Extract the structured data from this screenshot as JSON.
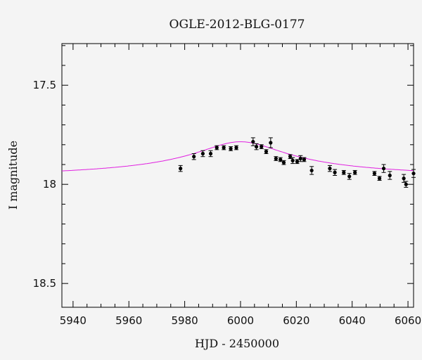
{
  "chart_data": {
    "type": "scatter",
    "title": "OGLE-2012-BLG-0177",
    "xlabel": "HJD - 2450000",
    "ylabel": "I magnitude",
    "xlim": [
      5936,
      6062
    ],
    "ylim": [
      18.62,
      17.29
    ],
    "y_inverted": true,
    "x_ticks": [
      5940,
      5960,
      5980,
      6000,
      6020,
      6040,
      6060
    ],
    "y_ticks": [
      17.5,
      18,
      18.5
    ],
    "y_tick_labels": [
      "17.5",
      "18",
      "18.5"
    ],
    "colors": {
      "points": "#000000",
      "model": "#e020e0",
      "frame": "#000000"
    },
    "series": [
      {
        "values": [
          {
            "x": 5978.5,
            "y": 17.92,
            "err": 0.015
          },
          {
            "x": 5983.3,
            "y": 17.86,
            "err": 0.015
          },
          {
            "x": 5986.5,
            "y": 17.845,
            "err": 0.015
          },
          {
            "x": 5989.3,
            "y": 17.845,
            "err": 0.015
          },
          {
            "x": 5991.5,
            "y": 17.815,
            "err": 0.01
          },
          {
            "x": 5994.0,
            "y": 17.815,
            "err": 0.01
          },
          {
            "x": 5996.5,
            "y": 17.82,
            "err": 0.01
          },
          {
            "x": 5998.5,
            "y": 17.815,
            "err": 0.01
          },
          {
            "x": 6004.5,
            "y": 17.785,
            "err": 0.02
          },
          {
            "x": 6005.7,
            "y": 17.81,
            "err": 0.015
          },
          {
            "x": 6007.5,
            "y": 17.81,
            "err": 0.01
          },
          {
            "x": 6009.2,
            "y": 17.835,
            "err": 0.01
          },
          {
            "x": 6010.8,
            "y": 17.79,
            "err": 0.025
          },
          {
            "x": 6012.7,
            "y": 17.87,
            "err": 0.01
          },
          {
            "x": 6014.3,
            "y": 17.875,
            "err": 0.01
          },
          {
            "x": 6015.5,
            "y": 17.89,
            "err": 0.01
          },
          {
            "x": 6017.8,
            "y": 17.86,
            "err": 0.01
          },
          {
            "x": 6018.7,
            "y": 17.88,
            "err": 0.015
          },
          {
            "x": 6020.3,
            "y": 17.885,
            "err": 0.01
          },
          {
            "x": 6021.5,
            "y": 17.87,
            "err": 0.015
          },
          {
            "x": 6022.8,
            "y": 17.875,
            "err": 0.01
          },
          {
            "x": 6025.5,
            "y": 17.93,
            "err": 0.02
          },
          {
            "x": 6032.0,
            "y": 17.92,
            "err": 0.015
          },
          {
            "x": 6033.8,
            "y": 17.94,
            "err": 0.015
          },
          {
            "x": 6037.0,
            "y": 17.94,
            "err": 0.01
          },
          {
            "x": 6039.0,
            "y": 17.96,
            "err": 0.015
          },
          {
            "x": 6041.0,
            "y": 17.94,
            "err": 0.01
          },
          {
            "x": 6048.0,
            "y": 17.945,
            "err": 0.01
          },
          {
            "x": 6049.8,
            "y": 17.97,
            "err": 0.01
          },
          {
            "x": 6051.3,
            "y": 17.92,
            "err": 0.02
          },
          {
            "x": 6053.5,
            "y": 17.955,
            "err": 0.02
          },
          {
            "x": 6058.5,
            "y": 17.97,
            "err": 0.02
          },
          {
            "x": 6059.3,
            "y": 18.0,
            "err": 0.015
          },
          {
            "x": 6062.0,
            "y": 17.945,
            "err": 0.02
          }
        ]
      }
    ],
    "model": {
      "type": "line",
      "t0": 6000,
      "peak_mag": 17.785,
      "base_mag": 17.98,
      "width": 28
    },
    "grid": false,
    "legend": "none"
  }
}
